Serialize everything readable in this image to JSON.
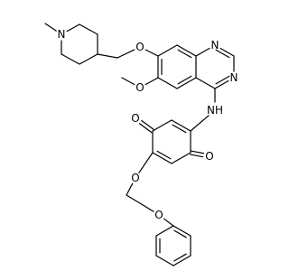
{
  "atom_labels": [
    "N",
    "O",
    "O",
    "N",
    "N",
    "NH",
    "O",
    "O",
    "O",
    "O"
  ]
}
